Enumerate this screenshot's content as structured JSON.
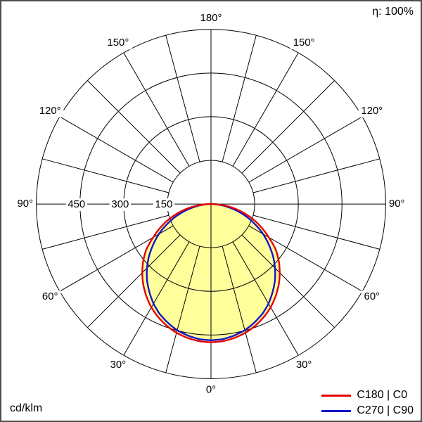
{
  "header": {
    "efficiency_label": "η: 100%"
  },
  "footer": {
    "unit_label": "cd/klm"
  },
  "legend": [
    {
      "label": "C180 | C0",
      "color": "#e50000"
    },
    {
      "label": "C270 | C90",
      "color": "#1414cc"
    }
  ],
  "chart_data": {
    "type": "polar",
    "unit": "cd/klm",
    "efficiency": "η: 100%",
    "radial_max": 600,
    "radial_ticks": [
      {
        "value": 150,
        "label": "150"
      },
      {
        "value": 300,
        "label": "300"
      },
      {
        "value": 450,
        "label": "450"
      }
    ],
    "angle_labels": [
      "0°",
      "30°",
      "60°",
      "90°",
      "120°",
      "150°",
      "180°"
    ],
    "gamma_step_deg": 5,
    "fill_color": "#ffff9c",
    "series": [
      {
        "name": "C180 | C0",
        "color": "#e50000",
        "values": [
          475,
          473,
          467,
          458,
          445,
          429,
          410,
          387,
          362,
          334,
          304,
          271,
          229,
          192,
          154,
          115,
          76,
          37,
          0
        ]
      },
      {
        "name": "C270 | C90",
        "color": "#1414cc",
        "values": [
          468,
          466,
          459,
          449,
          434,
          417,
          395,
          369,
          342,
          311,
          278,
          242,
          207,
          169,
          132,
          95,
          59,
          27,
          0
        ]
      }
    ],
    "layout": {
      "center_x": 300,
      "center_y": 290,
      "outer_radius_px": 250,
      "label_radius_px": 266,
      "grid_step_deg": 15,
      "grid": true,
      "legend_position": "bottom-right"
    }
  }
}
